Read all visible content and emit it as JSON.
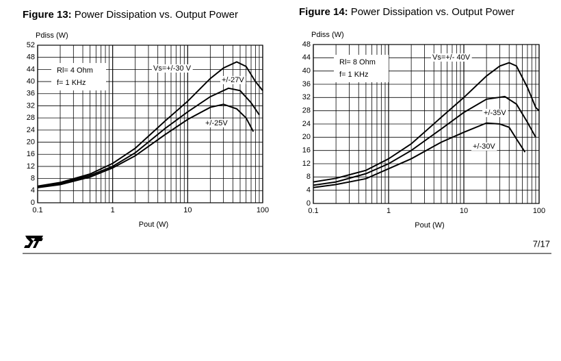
{
  "chart_data": [
    {
      "type": "line",
      "figure": "Figure 13:",
      "title": "Power Dissipation vs. Output Power",
      "x_label": "Pout (W)",
      "y_label": "Pdiss (W)",
      "log_x": true,
      "grid": true,
      "color": "#000000",
      "xlim": [
        0.1,
        100
      ],
      "xticks": [
        0.1,
        1,
        10,
        100
      ],
      "ylim": [
        0,
        52
      ],
      "yticks": [
        0,
        4,
        8,
        12,
        16,
        20,
        24,
        28,
        32,
        36,
        40,
        44,
        48,
        52
      ],
      "annotations": [
        "Rl= 4 Ohm",
        "f= 1 KHz"
      ],
      "series": [
        {
          "name": "Vs=+/-30 V",
          "x": [
            0.1,
            0.2,
            0.5,
            1,
            2,
            5,
            10,
            20,
            30,
            45,
            60,
            80,
            100
          ],
          "values": [
            5.5,
            6.7,
            9.5,
            13,
            18,
            27,
            33.5,
            41,
            44.5,
            46.5,
            45,
            40,
            37
          ]
        },
        {
          "name": "+/-27V",
          "x": [
            0.1,
            0.2,
            0.5,
            1,
            2,
            5,
            10,
            20,
            35,
            50,
            70,
            90
          ],
          "values": [
            5.2,
            6.4,
            9,
            12,
            16.5,
            24.5,
            30,
            35,
            37.8,
            37,
            33,
            29
          ]
        },
        {
          "name": "+/-25V",
          "x": [
            0.1,
            0.2,
            0.5,
            1,
            2,
            5,
            10,
            20,
            30,
            45,
            60,
            75
          ],
          "values": [
            5,
            6,
            8.5,
            11.5,
            15.5,
            22.5,
            27.5,
            31.5,
            32.5,
            31,
            28,
            23.5
          ]
        }
      ]
    },
    {
      "type": "line",
      "figure": "Figure 14:",
      "title": "Power Dissipation vs. Output Power",
      "x_label": "Pout (W)",
      "y_label": "Pdiss (W)",
      "log_x": true,
      "grid": true,
      "color": "#000000",
      "xlim": [
        0.1,
        100
      ],
      "xticks": [
        0.1,
        1,
        10,
        100
      ],
      "ylim": [
        0,
        48
      ],
      "yticks": [
        0,
        4,
        8,
        12,
        16,
        20,
        24,
        28,
        32,
        36,
        40,
        44,
        48
      ],
      "annotations": [
        "Rl= 8 Ohm",
        "f= 1 KHz"
      ],
      "series": [
        {
          "name": "Vs=+/- 40V",
          "x": [
            0.1,
            0.2,
            0.5,
            1,
            2,
            5,
            10,
            20,
            30,
            40,
            50,
            70,
            90,
            100
          ],
          "values": [
            6.5,
            7.6,
            10,
            13.5,
            18,
            26,
            32,
            38.5,
            41.5,
            42.5,
            41.5,
            35,
            29,
            28
          ]
        },
        {
          "name": "+/-35V",
          "x": [
            0.1,
            0.2,
            0.5,
            1,
            2,
            5,
            10,
            20,
            35,
            50,
            70,
            90
          ],
          "values": [
            5.5,
            6.5,
            9,
            12,
            16,
            22.5,
            27.5,
            31.5,
            32.3,
            30,
            24.5,
            20
          ]
        },
        {
          "name": "+/-30V",
          "x": [
            0.1,
            0.2,
            0.5,
            1,
            2,
            5,
            10,
            20,
            30,
            40,
            50,
            65
          ],
          "values": [
            4.8,
            5.7,
            7.5,
            10.5,
            13.5,
            18.5,
            21.5,
            24.3,
            24,
            23,
            19.5,
            15.5
          ]
        }
      ]
    }
  ],
  "page": {
    "number": "7/17"
  }
}
